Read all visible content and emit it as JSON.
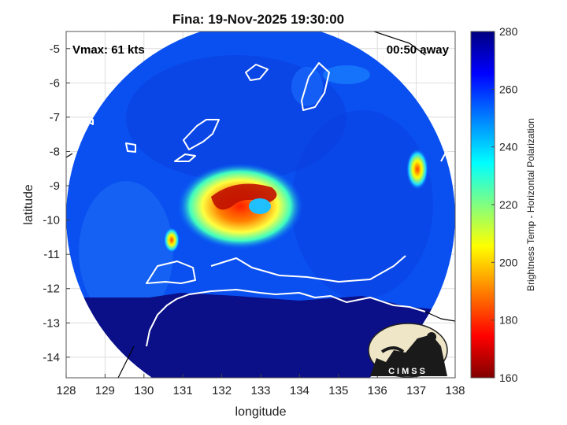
{
  "chart_data": {
    "type": "heatmap",
    "title": "Fina: 19-Nov-2025 19:30:00",
    "xlabel": "longitude",
    "ylabel": "latitude",
    "xlim": [
      128,
      138
    ],
    "ylim": [
      -14.6,
      -4.5
    ],
    "x_ticks": [
      128,
      129,
      130,
      131,
      132,
      133,
      134,
      135,
      136,
      137,
      138
    ],
    "y_ticks": [
      -5,
      -6,
      -7,
      -8,
      -9,
      -10,
      -11,
      -12,
      -13,
      -14
    ],
    "grid": true,
    "annotations": {
      "vmax": "Vmax: 61 kts",
      "time_away": "00:50 away"
    },
    "colorbar": {
      "label": "Brightness Temp - Horizontal Polarization",
      "range": [
        160,
        280
      ],
      "ticks": [
        160,
        180,
        200,
        220,
        240,
        260,
        280
      ],
      "colormap": [
        "#800000",
        "#ff0000",
        "#ff8000",
        "#ffff00",
        "#80ff80",
        "#00ffff",
        "#0080ff",
        "#0000ff",
        "#000080"
      ]
    },
    "storm_center": {
      "lon": 133.0,
      "lat": -9.7
    },
    "cold_core": [
      {
        "lon": 132.9,
        "lat": -9.4,
        "value": 175
      },
      {
        "lon": 132.5,
        "lat": -9.7,
        "value": 185
      },
      {
        "lon": 133.2,
        "lat": -9.6,
        "value": 190
      },
      {
        "lon": 132.2,
        "lat": -9.9,
        "value": 205
      },
      {
        "lon": 130.7,
        "lat": -10.6,
        "value": 215
      },
      {
        "lon": 137.0,
        "lat": -8.7,
        "value": 215
      }
    ],
    "land_value": 280,
    "ocean_value": 255
  },
  "logo": {
    "text": "CIMSS"
  }
}
